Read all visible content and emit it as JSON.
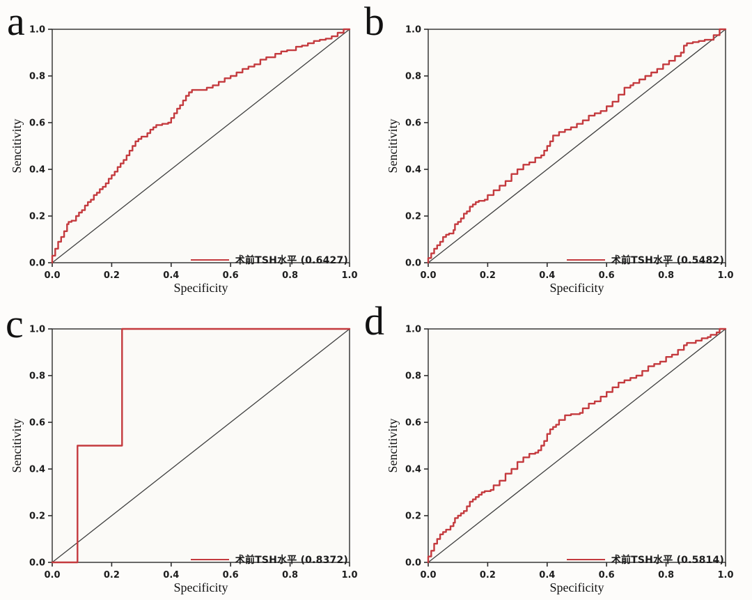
{
  "figure": {
    "colors": {
      "roc_curve": "#c43a3e",
      "diagonal": "#3d3d3d",
      "axis": "#2b2b2b",
      "tick_text": "#1c1c1c",
      "plot_fill": "#fbfaf7",
      "background": "#fdfcfa"
    },
    "axes": {
      "x_label": "Specificity",
      "y_label": "Sencitivity",
      "x_ticks": [
        "0.0",
        "0.2",
        "0.4",
        "0.6",
        "0.8",
        "1.0"
      ],
      "y_ticks": [
        "0.0",
        "0.2",
        "0.4",
        "0.6",
        "0.8",
        "1.0"
      ],
      "x_range": [
        0,
        1
      ],
      "y_range": [
        0,
        1
      ]
    },
    "panels": [
      {
        "letter": "a",
        "legend_label": "术前TSH水平 (0.6427)",
        "auc": "0.6427"
      },
      {
        "letter": "b",
        "legend_label": "术前TSH水平 (0.5482)",
        "auc": "0.5482"
      },
      {
        "letter": "c",
        "legend_label": "术前TSH水平 (0.8372)",
        "auc": "0.8372"
      },
      {
        "letter": "d",
        "legend_label": "术前TSH水平 (0.5814)",
        "auc": "0.5814"
      }
    ]
  },
  "chart_data": [
    {
      "type": "line",
      "panel": "a",
      "xlabel": "Specificity",
      "ylabel": "Sencitivity",
      "xlim": [
        0,
        1
      ],
      "ylim": [
        0,
        1
      ],
      "grid": false,
      "legend_position": "lower right",
      "series": [
        {
          "name": "术前TSH水平",
          "auc": 0.6427,
          "color": "#c43a3e",
          "points": [
            [
              0,
              0
            ],
            [
              0.01,
              0.03
            ],
            [
              0.02,
              0.06
            ],
            [
              0.03,
              0.09
            ],
            [
              0.04,
              0.11
            ],
            [
              0.05,
              0.135
            ],
            [
              0.055,
              0.165
            ],
            [
              0.065,
              0.175
            ],
            [
              0.08,
              0.18
            ],
            [
              0.09,
              0.2
            ],
            [
              0.1,
              0.215
            ],
            [
              0.11,
              0.225
            ],
            [
              0.12,
              0.245
            ],
            [
              0.13,
              0.26
            ],
            [
              0.14,
              0.27
            ],
            [
              0.15,
              0.29
            ],
            [
              0.16,
              0.3
            ],
            [
              0.17,
              0.315
            ],
            [
              0.18,
              0.325
            ],
            [
              0.19,
              0.34
            ],
            [
              0.2,
              0.36
            ],
            [
              0.21,
              0.375
            ],
            [
              0.22,
              0.39
            ],
            [
              0.23,
              0.41
            ],
            [
              0.24,
              0.425
            ],
            [
              0.25,
              0.44
            ],
            [
              0.26,
              0.46
            ],
            [
              0.27,
              0.48
            ],
            [
              0.28,
              0.5
            ],
            [
              0.29,
              0.52
            ],
            [
              0.3,
              0.53
            ],
            [
              0.32,
              0.54
            ],
            [
              0.33,
              0.555
            ],
            [
              0.34,
              0.57
            ],
            [
              0.35,
              0.58
            ],
            [
              0.37,
              0.59
            ],
            [
              0.39,
              0.595
            ],
            [
              0.4,
              0.6
            ],
            [
              0.41,
              0.62
            ],
            [
              0.42,
              0.64
            ],
            [
              0.43,
              0.66
            ],
            [
              0.44,
              0.675
            ],
            [
              0.45,
              0.695
            ],
            [
              0.46,
              0.715
            ],
            [
              0.47,
              0.73
            ],
            [
              0.48,
              0.74
            ],
            [
              0.52,
              0.74
            ],
            [
              0.54,
              0.75
            ],
            [
              0.56,
              0.76
            ],
            [
              0.58,
              0.775
            ],
            [
              0.6,
              0.79
            ],
            [
              0.62,
              0.8
            ],
            [
              0.64,
              0.815
            ],
            [
              0.66,
              0.83
            ],
            [
              0.68,
              0.84
            ],
            [
              0.7,
              0.85
            ],
            [
              0.72,
              0.87
            ],
            [
              0.75,
              0.88
            ],
            [
              0.77,
              0.895
            ],
            [
              0.79,
              0.905
            ],
            [
              0.82,
              0.91
            ],
            [
              0.84,
              0.925
            ],
            [
              0.86,
              0.93
            ],
            [
              0.88,
              0.94
            ],
            [
              0.9,
              0.95
            ],
            [
              0.92,
              0.955
            ],
            [
              0.94,
              0.96
            ],
            [
              0.96,
              0.97
            ],
            [
              0.98,
              0.985
            ],
            [
              1,
              1
            ]
          ]
        },
        {
          "name": "reference-diagonal",
          "color": "#3d3d3d",
          "points": [
            [
              0,
              0
            ],
            [
              1,
              1
            ]
          ]
        }
      ]
    },
    {
      "type": "line",
      "panel": "b",
      "xlabel": "Specificity",
      "ylabel": "Sencitivity",
      "xlim": [
        0,
        1
      ],
      "ylim": [
        0,
        1
      ],
      "grid": false,
      "legend_position": "lower right",
      "series": [
        {
          "name": "术前TSH水平",
          "auc": 0.5482,
          "color": "#c43a3e",
          "points": [
            [
              0,
              0
            ],
            [
              0.01,
              0.02
            ],
            [
              0.02,
              0.04
            ],
            [
              0.03,
              0.06
            ],
            [
              0.04,
              0.075
            ],
            [
              0.05,
              0.09
            ],
            [
              0.06,
              0.11
            ],
            [
              0.07,
              0.12
            ],
            [
              0.085,
              0.125
            ],
            [
              0.09,
              0.14
            ],
            [
              0.1,
              0.165
            ],
            [
              0.11,
              0.175
            ],
            [
              0.12,
              0.19
            ],
            [
              0.13,
              0.21
            ],
            [
              0.14,
              0.22
            ],
            [
              0.15,
              0.24
            ],
            [
              0.16,
              0.25
            ],
            [
              0.17,
              0.26
            ],
            [
              0.19,
              0.265
            ],
            [
              0.2,
              0.27
            ],
            [
              0.22,
              0.29
            ],
            [
              0.24,
              0.31
            ],
            [
              0.26,
              0.33
            ],
            [
              0.28,
              0.35
            ],
            [
              0.3,
              0.38
            ],
            [
              0.32,
              0.4
            ],
            [
              0.34,
              0.42
            ],
            [
              0.36,
              0.43
            ],
            [
              0.38,
              0.45
            ],
            [
              0.39,
              0.46
            ],
            [
              0.4,
              0.48
            ],
            [
              0.41,
              0.5
            ],
            [
              0.42,
              0.52
            ],
            [
              0.44,
              0.545
            ],
            [
              0.46,
              0.56
            ],
            [
              0.48,
              0.57
            ],
            [
              0.5,
              0.58
            ],
            [
              0.52,
              0.595
            ],
            [
              0.54,
              0.61
            ],
            [
              0.56,
              0.63
            ],
            [
              0.58,
              0.64
            ],
            [
              0.6,
              0.65
            ],
            [
              0.62,
              0.67
            ],
            [
              0.64,
              0.69
            ],
            [
              0.66,
              0.72
            ],
            [
              0.68,
              0.75
            ],
            [
              0.69,
              0.76
            ],
            [
              0.71,
              0.77
            ],
            [
              0.73,
              0.785
            ],
            [
              0.75,
              0.8
            ],
            [
              0.77,
              0.815
            ],
            [
              0.79,
              0.83
            ],
            [
              0.81,
              0.85
            ],
            [
              0.83,
              0.865
            ],
            [
              0.85,
              0.885
            ],
            [
              0.86,
              0.9
            ],
            [
              0.87,
              0.93
            ],
            [
              0.89,
              0.94
            ],
            [
              0.91,
              0.945
            ],
            [
              0.93,
              0.95
            ],
            [
              0.96,
              0.955
            ],
            [
              0.98,
              0.975
            ],
            [
              1,
              1
            ]
          ]
        },
        {
          "name": "reference-diagonal",
          "color": "#3d3d3d",
          "points": [
            [
              0,
              0
            ],
            [
              1,
              1
            ]
          ]
        }
      ]
    },
    {
      "type": "line",
      "panel": "c",
      "xlabel": "Specificity",
      "ylabel": "Sencitivity",
      "xlim": [
        0,
        1
      ],
      "ylim": [
        0,
        1
      ],
      "grid": false,
      "legend_position": "lower right",
      "series": [
        {
          "name": "术前TSH水平",
          "auc": 0.8372,
          "color": "#c43a3e",
          "points": [
            [
              0,
              0
            ],
            [
              0.085,
              0
            ],
            [
              0.085,
              0.5
            ],
            [
              0.235,
              0.5
            ],
            [
              0.235,
              1
            ],
            [
              1,
              1
            ]
          ]
        },
        {
          "name": "reference-diagonal",
          "color": "#3d3d3d",
          "points": [
            [
              0,
              0
            ],
            [
              1,
              1
            ]
          ]
        }
      ]
    },
    {
      "type": "line",
      "panel": "d",
      "xlabel": "Specificity",
      "ylabel": "Sencitivity",
      "xlim": [
        0,
        1
      ],
      "ylim": [
        0,
        1
      ],
      "grid": false,
      "legend_position": "lower right",
      "series": [
        {
          "name": "术前TSH水平",
          "auc": 0.5814,
          "color": "#c43a3e",
          "points": [
            [
              0,
              0
            ],
            [
              0.01,
              0.025
            ],
            [
              0.02,
              0.05
            ],
            [
              0.03,
              0.08
            ],
            [
              0.04,
              0.1
            ],
            [
              0.05,
              0.12
            ],
            [
              0.06,
              0.13
            ],
            [
              0.075,
              0.14
            ],
            [
              0.085,
              0.155
            ],
            [
              0.09,
              0.17
            ],
            [
              0.1,
              0.19
            ],
            [
              0.11,
              0.2
            ],
            [
              0.12,
              0.21
            ],
            [
              0.13,
              0.22
            ],
            [
              0.14,
              0.24
            ],
            [
              0.15,
              0.26
            ],
            [
              0.16,
              0.27
            ],
            [
              0.17,
              0.28
            ],
            [
              0.18,
              0.29
            ],
            [
              0.19,
              0.3
            ],
            [
              0.21,
              0.305
            ],
            [
              0.22,
              0.31
            ],
            [
              0.24,
              0.33
            ],
            [
              0.26,
              0.35
            ],
            [
              0.28,
              0.38
            ],
            [
              0.3,
              0.4
            ],
            [
              0.32,
              0.43
            ],
            [
              0.34,
              0.45
            ],
            [
              0.36,
              0.465
            ],
            [
              0.37,
              0.47
            ],
            [
              0.38,
              0.48
            ],
            [
              0.39,
              0.5
            ],
            [
              0.4,
              0.52
            ],
            [
              0.41,
              0.55
            ],
            [
              0.42,
              0.57
            ],
            [
              0.43,
              0.58
            ],
            [
              0.44,
              0.59
            ],
            [
              0.46,
              0.61
            ],
            [
              0.48,
              0.63
            ],
            [
              0.51,
              0.635
            ],
            [
              0.52,
              0.64
            ],
            [
              0.54,
              0.66
            ],
            [
              0.56,
              0.68
            ],
            [
              0.58,
              0.69
            ],
            [
              0.6,
              0.71
            ],
            [
              0.62,
              0.73
            ],
            [
              0.64,
              0.75
            ],
            [
              0.66,
              0.77
            ],
            [
              0.68,
              0.78
            ],
            [
              0.7,
              0.79
            ],
            [
              0.72,
              0.8
            ],
            [
              0.74,
              0.82
            ],
            [
              0.76,
              0.84
            ],
            [
              0.78,
              0.85
            ],
            [
              0.8,
              0.86
            ],
            [
              0.82,
              0.88
            ],
            [
              0.84,
              0.89
            ],
            [
              0.86,
              0.91
            ],
            [
              0.87,
              0.93
            ],
            [
              0.88,
              0.94
            ],
            [
              0.9,
              0.94
            ],
            [
              0.92,
              0.95
            ],
            [
              0.94,
              0.96
            ],
            [
              0.95,
              0.965
            ],
            [
              0.97,
              0.975
            ],
            [
              0.98,
              0.985
            ],
            [
              1,
              1
            ]
          ]
        },
        {
          "name": "reference-diagonal",
          "color": "#3d3d3d",
          "points": [
            [
              0,
              0
            ],
            [
              1,
              1
            ]
          ]
        }
      ]
    }
  ]
}
